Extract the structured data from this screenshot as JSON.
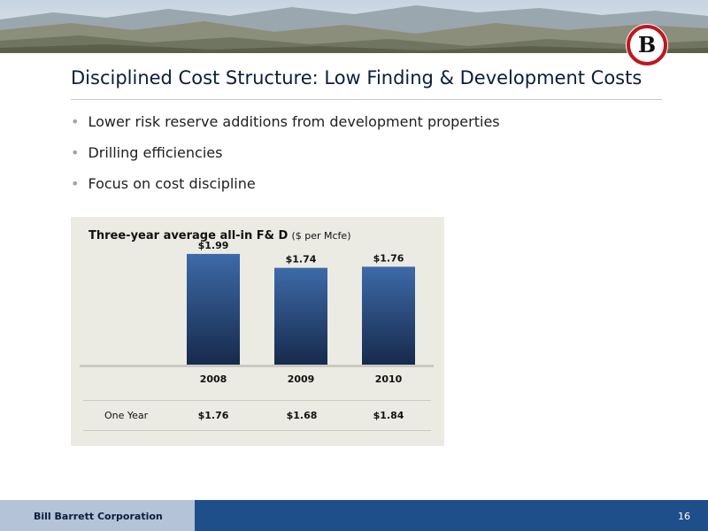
{
  "slide": {
    "title": "Disciplined Cost Structure: Low Finding & Development Costs",
    "bullets": [
      "Lower risk reserve additions from development properties",
      "Drilling efficiencies",
      "Focus on cost discipline"
    ],
    "logo_letter": "B",
    "footer": {
      "company": "Bill Barrett Corporation",
      "page_number": "16"
    },
    "colors": {
      "title": "#0b1d3d",
      "footer_bar": "#1f4f8a",
      "footer_light": "#b4c3d7",
      "panel_bg": "#ebebe4"
    }
  },
  "chart_data": {
    "type": "bar",
    "title": "Three-year average all-in F& D",
    "title_unit": "($ per Mcfe)",
    "categories": [
      "2008",
      "2009",
      "2010"
    ],
    "values": [
      1.99,
      1.74,
      1.76
    ],
    "value_labels": [
      "$1.99",
      "$1.74",
      "$1.76"
    ],
    "ylim": [
      0,
      2.1
    ],
    "grid": false,
    "legend": "none",
    "bar_color_top": "#3d6aa8",
    "bar_color_bottom": "#172a4c",
    "table_row": {
      "label": "One Year",
      "values": [
        "$1.76",
        "$1.68",
        "$1.84"
      ]
    }
  }
}
